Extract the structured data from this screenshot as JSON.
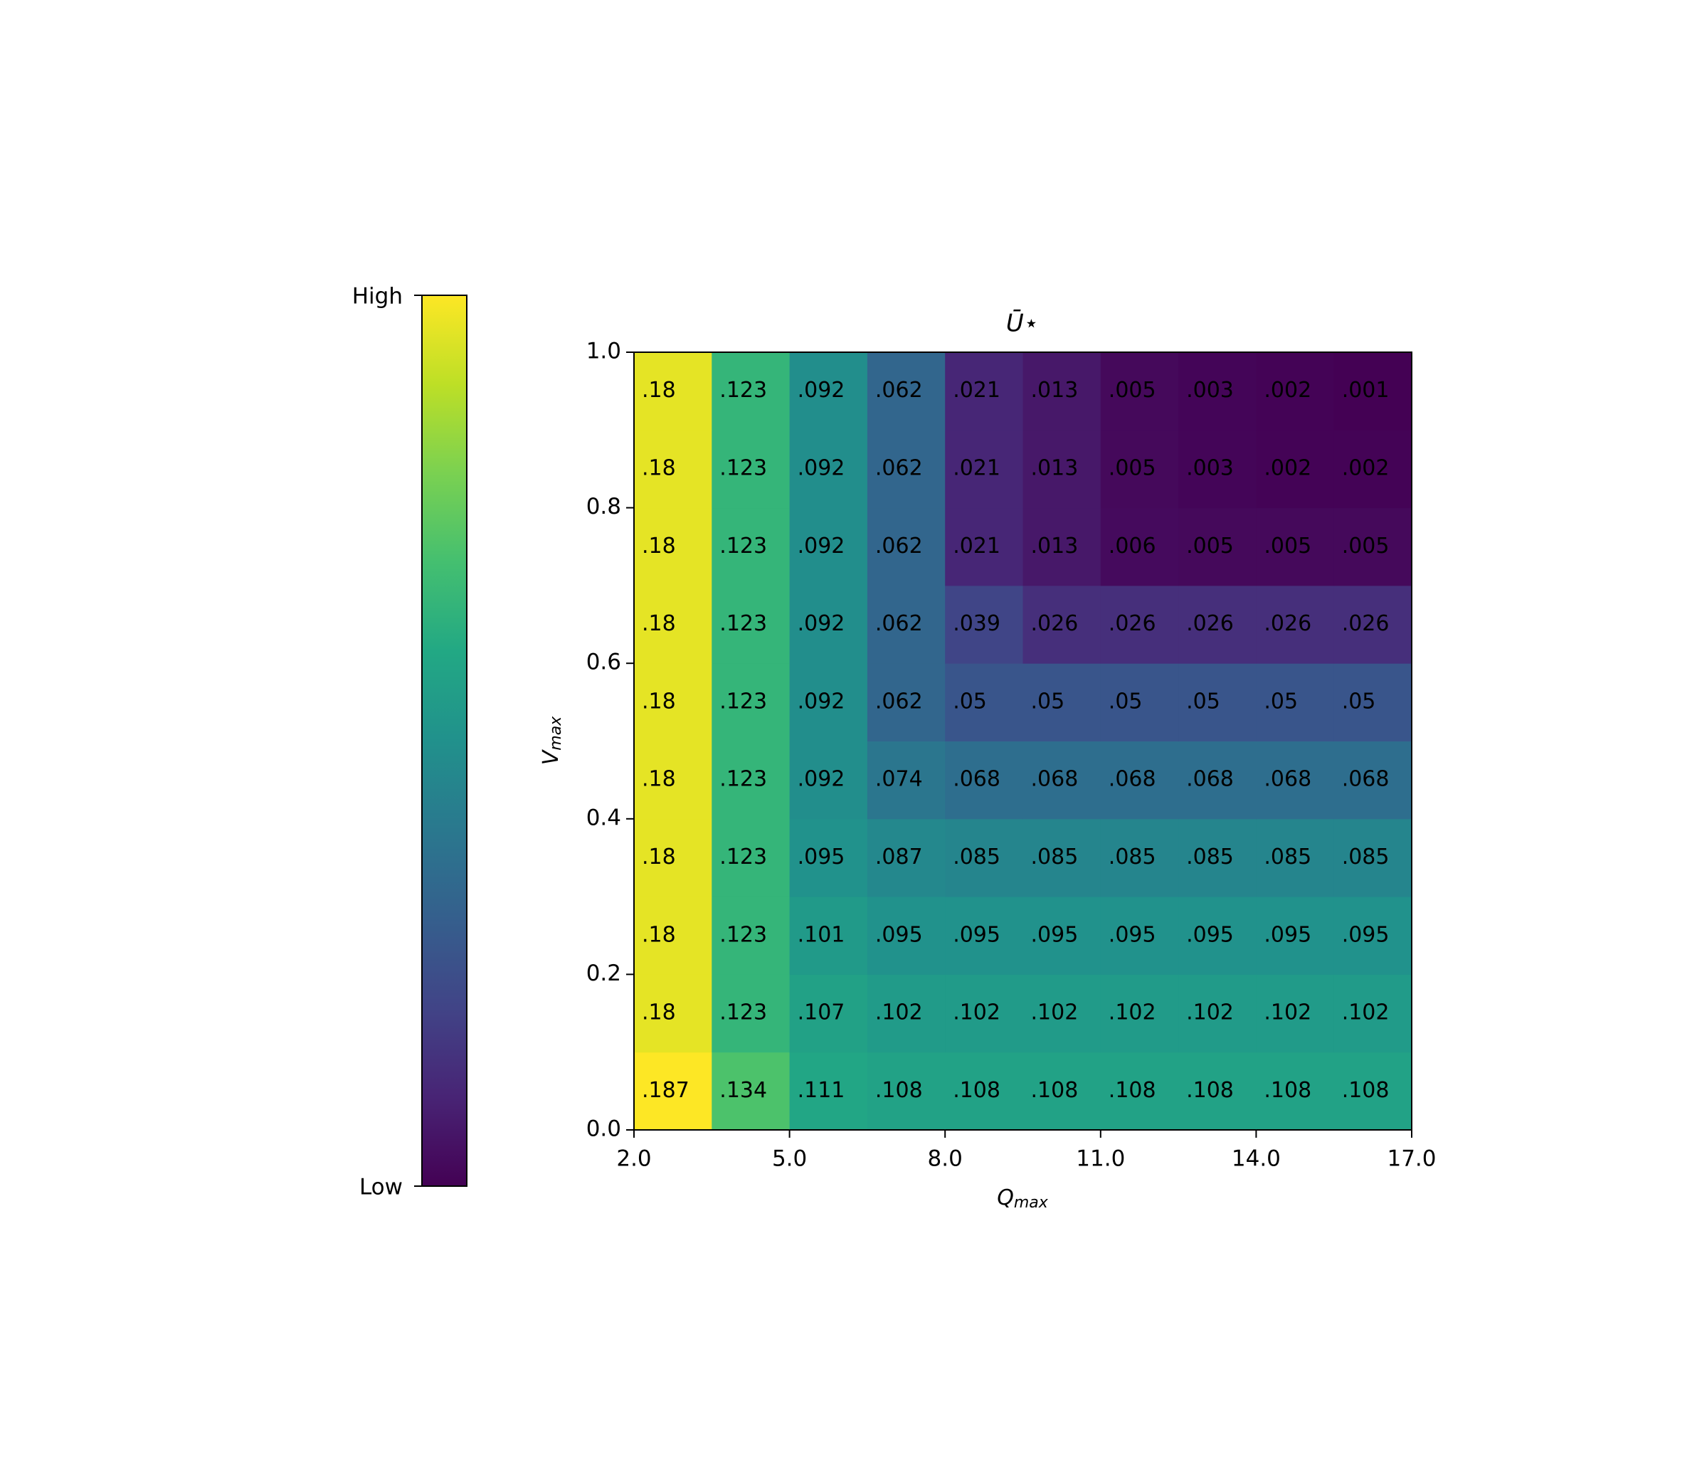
{
  "chart_data": {
    "type": "heatmap",
    "title": "Ū⋆",
    "xlabel": {
      "main": "Q",
      "sub": "max"
    },
    "ylabel": {
      "main": "V",
      "sub": "max"
    },
    "colormap": "viridis",
    "colorbar": {
      "high": "High",
      "low": "Low"
    },
    "xlim": [
      2,
      17
    ],
    "ylim": [
      0,
      1
    ],
    "xticks": [
      {
        "value": 2,
        "label": "2.0"
      },
      {
        "value": 5,
        "label": "5.0"
      },
      {
        "value": 8,
        "label": "8.0"
      },
      {
        "value": 11,
        "label": "11.0"
      },
      {
        "value": 14,
        "label": "14.0"
      },
      {
        "value": 17,
        "label": "17.0"
      }
    ],
    "yticks": [
      {
        "value": 0,
        "label": "0.0"
      },
      {
        "value": 0.2,
        "label": "0.2"
      },
      {
        "value": 0.4,
        "label": "0.4"
      },
      {
        "value": 0.6,
        "label": "0.6"
      },
      {
        "value": 0.8,
        "label": "0.8"
      },
      {
        "value": 1,
        "label": "1.0"
      }
    ],
    "values": [
      [
        0.187,
        0.134,
        0.111,
        0.108,
        0.108,
        0.108,
        0.108,
        0.108,
        0.108,
        0.108
      ],
      [
        0.18,
        0.123,
        0.107,
        0.102,
        0.102,
        0.102,
        0.102,
        0.102,
        0.102,
        0.102
      ],
      [
        0.18,
        0.123,
        0.101,
        0.095,
        0.095,
        0.095,
        0.095,
        0.095,
        0.095,
        0.095
      ],
      [
        0.18,
        0.123,
        0.095,
        0.087,
        0.085,
        0.085,
        0.085,
        0.085,
        0.085,
        0.085
      ],
      [
        0.18,
        0.123,
        0.092,
        0.074,
        0.068,
        0.068,
        0.068,
        0.068,
        0.068,
        0.068
      ],
      [
        0.18,
        0.123,
        0.092,
        0.062,
        0.05,
        0.05,
        0.05,
        0.05,
        0.05,
        0.05
      ],
      [
        0.18,
        0.123,
        0.092,
        0.062,
        0.039,
        0.026,
        0.026,
        0.026,
        0.026,
        0.026
      ],
      [
        0.18,
        0.123,
        0.092,
        0.062,
        0.021,
        0.013,
        0.006,
        0.005,
        0.005,
        0.005
      ],
      [
        0.18,
        0.123,
        0.092,
        0.062,
        0.021,
        0.013,
        0.005,
        0.003,
        0.002,
        0.002
      ],
      [
        0.18,
        0.123,
        0.092,
        0.062,
        0.021,
        0.013,
        0.005,
        0.003,
        0.002,
        0.001
      ]
    ],
    "value_labels": [
      [
        ".187",
        ".134",
        ".111",
        ".108",
        ".108",
        ".108",
        ".108",
        ".108",
        ".108",
        ".108"
      ],
      [
        ".18",
        ".123",
        ".107",
        ".102",
        ".102",
        ".102",
        ".102",
        ".102",
        ".102",
        ".102"
      ],
      [
        ".18",
        ".123",
        ".101",
        ".095",
        ".095",
        ".095",
        ".095",
        ".095",
        ".095",
        ".095"
      ],
      [
        ".18",
        ".123",
        ".095",
        ".087",
        ".085",
        ".085",
        ".085",
        ".085",
        ".085",
        ".085"
      ],
      [
        ".18",
        ".123",
        ".092",
        ".074",
        ".068",
        ".068",
        ".068",
        ".068",
        ".068",
        ".068"
      ],
      [
        ".18",
        ".123",
        ".092",
        ".062",
        ".05",
        ".05",
        ".05",
        ".05",
        ".05",
        ".05"
      ],
      [
        ".18",
        ".123",
        ".092",
        ".062",
        ".039",
        ".026",
        ".026",
        ".026",
        ".026",
        ".026"
      ],
      [
        ".18",
        ".123",
        ".092",
        ".062",
        ".021",
        ".013",
        ".006",
        ".005",
        ".005",
        ".005"
      ],
      [
        ".18",
        ".123",
        ".092",
        ".062",
        ".021",
        ".013",
        ".005",
        ".003",
        ".002",
        ".002"
      ],
      [
        ".18",
        ".123",
        ".092",
        ".062",
        ".021",
        ".013",
        ".005",
        ".003",
        ".002",
        ".001"
      ]
    ]
  }
}
